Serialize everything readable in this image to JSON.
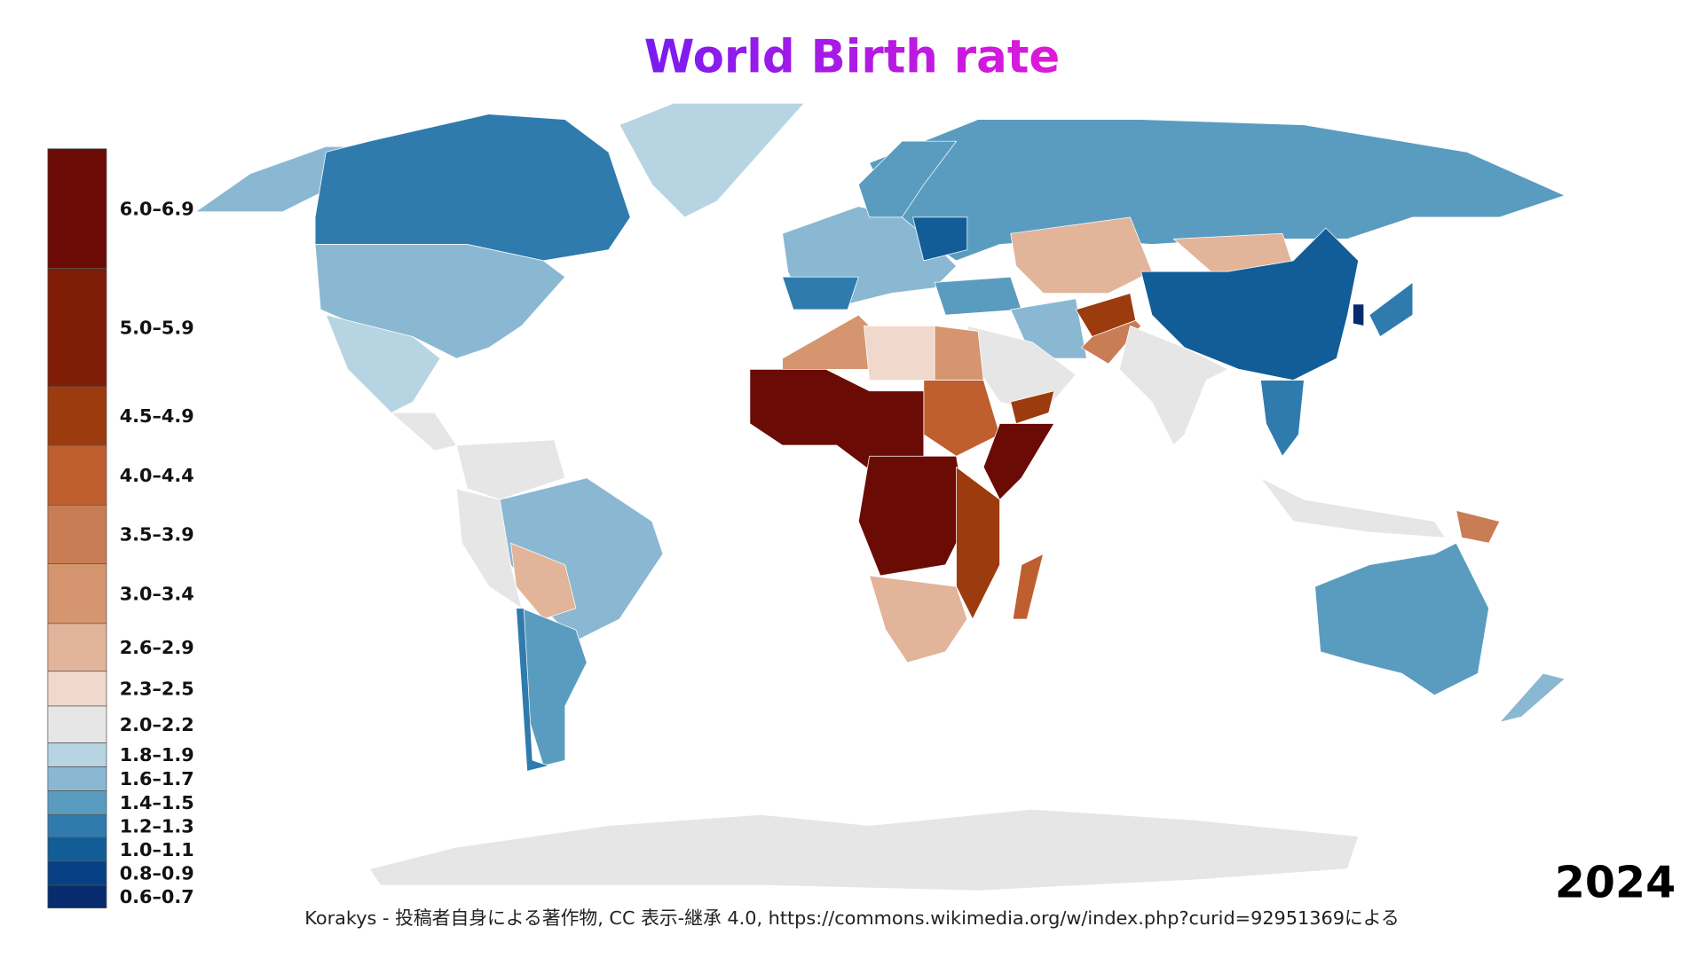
{
  "title": "World Birth rate",
  "legend": [
    {
      "label": "6.0–6.9",
      "color": "#6b0b05"
    },
    {
      "label": "5.0–5.9",
      "color": "#7f1d06"
    },
    {
      "label": "4.5–4.9",
      "color": "#9c3b0e"
    },
    {
      "label": "4.0–4.4",
      "color": "#bf5e2e"
    },
    {
      "label": "3.5–3.9",
      "color": "#c97d55"
    },
    {
      "label": "3.0–3.4",
      "color": "#d4956f"
    },
    {
      "label": "2.6–2.9",
      "color": "#e2b49a"
    },
    {
      "label": "2.3–2.5",
      "color": "#f0d8cd"
    },
    {
      "label": "2.0–2.2",
      "color": "#e6e6e6"
    },
    {
      "label": "1.8–1.9",
      "color": "#b7d4e2"
    },
    {
      "label": "1.6–1.7",
      "color": "#8ab8d2"
    },
    {
      "label": "1.4–1.5",
      "color": "#5a9cc0"
    },
    {
      "label": "1.2–1.3",
      "color": "#2f7bae"
    },
    {
      "label": "1.0–1.1",
      "color": "#125d97"
    },
    {
      "label": "0.8–0.9",
      "color": "#063f83"
    },
    {
      "label": "0.6–0.7",
      "color": "#062c6e"
    }
  ],
  "year": "2024",
  "attribution": "Korakys - 投稿者自身による著作物, CC 表示-継承 4.0, https://commons.wikimedia.org/w/index.php?curid=92951369による"
}
